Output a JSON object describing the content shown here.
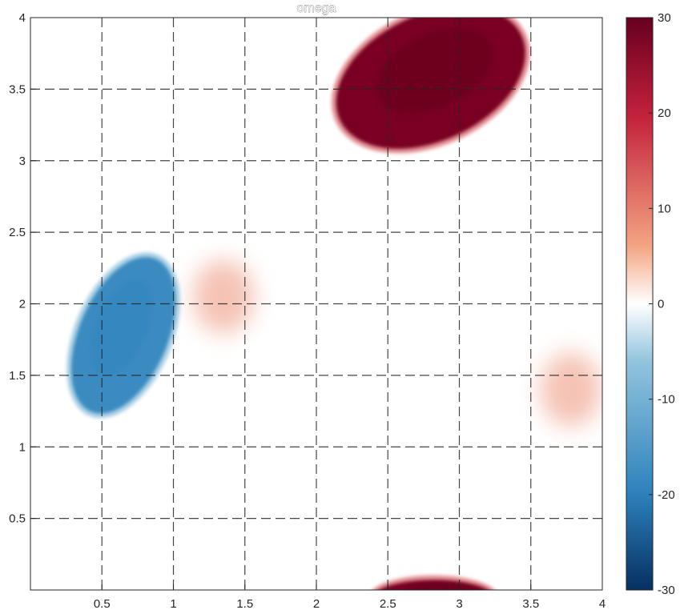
{
  "chart_data": {
    "type": "heatmap",
    "title": "omega",
    "xlabel": "",
    "ylabel": "",
    "xlim": [
      0,
      4
    ],
    "ylim": [
      0,
      4
    ],
    "xticks": [
      0.5,
      1,
      1.5,
      2,
      2.5,
      3,
      3.5,
      4
    ],
    "yticks": [
      0.5,
      1,
      1.5,
      2,
      2.5,
      3,
      3.5,
      4
    ],
    "grid": true,
    "grid_style": "dashed",
    "colorbar": {
      "clim": [
        -30,
        30
      ],
      "ticks": [
        -30,
        -20,
        -10,
        0,
        10,
        20,
        30
      ],
      "colormap": "red-white-blue",
      "colors": {
        "max": "#67001f",
        "high": "#c2203a",
        "mid_high": "#f4a582",
        "zero": "#ffffff",
        "mid_low": "#92c5de",
        "low": "#2e82bd",
        "min": "#053061"
      }
    },
    "vortices": [
      {
        "name": "positive vortex",
        "cx": 2.8,
        "cy": 3.58,
        "rx": 0.7,
        "ry": 0.44,
        "angle_deg": -25,
        "value": 28
      },
      {
        "name": "negative vortex",
        "cx": 0.65,
        "cy": 1.78,
        "rx": 0.58,
        "ry": 0.31,
        "angle_deg": -67,
        "value": -18
      },
      {
        "name": "positive vortex partial bottom",
        "cx": 2.82,
        "cy": -0.05,
        "rx": 0.42,
        "ry": 0.12,
        "angle_deg": 0,
        "value": 28
      }
    ],
    "weak_features": [
      {
        "cx": 1.35,
        "cy": 2.05,
        "value": 5
      },
      {
        "cx": 3.78,
        "cy": 1.4,
        "value": 5
      }
    ]
  }
}
